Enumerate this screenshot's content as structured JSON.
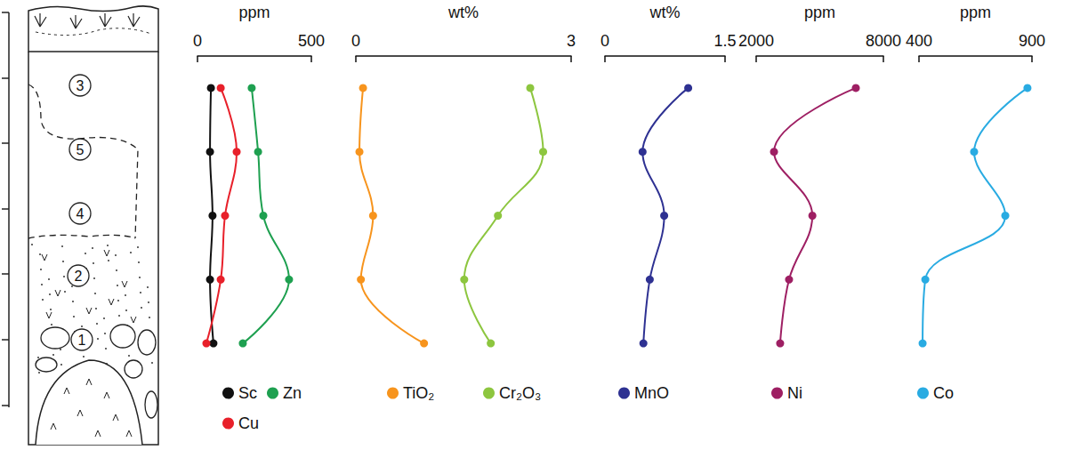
{
  "chart_data": [
    {
      "type": "line",
      "xlabel": "ppm",
      "categories": [
        "3",
        "5",
        "4",
        "2",
        "1"
      ],
      "xlim": [
        0,
        500
      ],
      "xticks": [
        0,
        500
      ],
      "tick_labels": "x",
      "marker": "circle",
      "line_style": "solid",
      "series": [
        {
          "name": "Sc",
          "color": "#111111",
          "values": [
            59,
            55,
            66,
            55,
            70
          ]
        },
        {
          "name": "Cu",
          "color": "#e8202a",
          "values": [
            102,
            172,
            121,
            102,
            39
          ]
        },
        {
          "name": "Zn",
          "color": "#1ea050",
          "values": [
            238,
            266,
            289,
            402,
            199
          ]
        }
      ]
    },
    {
      "type": "line",
      "xlabel": "wt%",
      "categories": [
        "3",
        "5",
        "4",
        "2",
        "1"
      ],
      "xlim": [
        0,
        3
      ],
      "xticks": [
        0,
        3
      ],
      "tick_labels": "x",
      "marker": "circle",
      "line_style": "solid",
      "series": [
        {
          "name": "TiO₂",
          "color": "#f7941d",
          "values": [
            0.1,
            0.05,
            0.24,
            0.07,
            0.95
          ]
        },
        {
          "name": "Cr₂O₃",
          "color": "#8dc63f",
          "values": [
            2.43,
            2.61,
            1.98,
            1.51,
            1.88
          ]
        }
      ]
    },
    {
      "type": "line",
      "xlabel": "wt%",
      "categories": [
        "3",
        "5",
        "4",
        "2",
        "1"
      ],
      "xlim": [
        0,
        1.5
      ],
      "xticks": [
        0,
        1.5
      ],
      "tick_labels": "x",
      "marker": "circle",
      "line_style": "solid",
      "series": [
        {
          "name": "MnO",
          "color": "#2e3192",
          "values": [
            1.04,
            0.47,
            0.74,
            0.56,
            0.48
          ]
        }
      ]
    },
    {
      "type": "line",
      "xlabel": "ppm",
      "categories": [
        "3",
        "5",
        "4",
        "2",
        "1"
      ],
      "xlim": [
        2000,
        8000
      ],
      "xticks": [
        2000,
        8000
      ],
      "tick_labels": "x",
      "marker": "circle",
      "line_style": "solid",
      "series": [
        {
          "name": "Ni",
          "color": "#9e1f63",
          "values": [
            6700,
            2840,
            4650,
            3550,
            3130
          ]
        }
      ]
    },
    {
      "type": "line",
      "xlabel": "ppm",
      "categories": [
        "3",
        "5",
        "4",
        "2",
        "1"
      ],
      "xlim": [
        400,
        900
      ],
      "xticks": [
        400,
        900
      ],
      "tick_labels": "x",
      "marker": "circle",
      "line_style": "solid",
      "series": [
        {
          "name": "Co",
          "color": "#29abe2",
          "values": [
            880,
            644,
            782,
            428,
            416
          ]
        }
      ]
    }
  ]
}
